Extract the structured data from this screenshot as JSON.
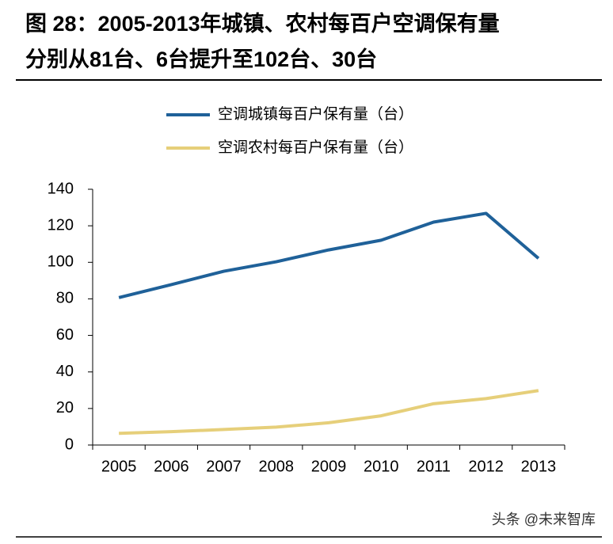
{
  "chart_data": {
    "type": "line",
    "title": "图 28：2005-2013年城镇、农村每百户空调保有量",
    "subtitle": "分别从81台、6台提升至102台、30台",
    "categories": [
      "2005",
      "2006",
      "2007",
      "2008",
      "2009",
      "2010",
      "2011",
      "2012",
      "2013"
    ],
    "series": [
      {
        "name": "空调城镇每百户保有量（台）",
        "color": "#1f6199",
        "values": [
          80.7,
          87.8,
          95.1,
          100.3,
          106.8,
          112.1,
          122.0,
          126.8,
          102.2
        ]
      },
      {
        "name": "空调农村每百户保有量（台）",
        "color": "#e6cf7a",
        "values": [
          6.4,
          7.3,
          8.5,
          9.8,
          12.2,
          16.0,
          22.6,
          25.4,
          29.8
        ]
      }
    ],
    "ylim": [
      0,
      140
    ],
    "yticks": [
      0,
      20,
      40,
      60,
      80,
      100,
      120,
      140
    ],
    "source": "头条 @未来智库"
  }
}
